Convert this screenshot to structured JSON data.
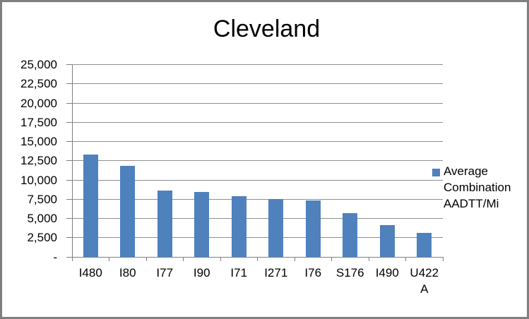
{
  "title": "Cleveland",
  "legend": {
    "label": "Average Combination AADTT/Mi",
    "marker_color": "#4f81bd"
  },
  "colors": {
    "bar": "#4f81bd",
    "gridline": "#8f8f8f",
    "axis": "#7f7f7f",
    "border": "#7f7f7f",
    "text": "#000000",
    "background": "#ffffff"
  },
  "chart_data": {
    "type": "bar",
    "title": "Cleveland",
    "categories": [
      "I480",
      "I80",
      "I77",
      "I90",
      "I71",
      "I271",
      "I76",
      "S176",
      "I490",
      "U422 A"
    ],
    "series": [
      {
        "name": "Average Combination AADTT/Mi",
        "values": [
          13300,
          11800,
          8600,
          8400,
          7850,
          7500,
          7300,
          5650,
          4100,
          3100
        ]
      }
    ],
    "xlabel": "",
    "ylabel": "",
    "ylim": [
      0,
      25000
    ],
    "ytick_step": 2500,
    "ytick_labels": [
      "-",
      "2,500",
      "5,000",
      "7,500",
      "10,000",
      "12,500",
      "15,000",
      "17,500",
      "20,000",
      "22,500",
      "25,000"
    ],
    "grid": true,
    "legend_position": "right",
    "bar_color": "#4f81bd"
  }
}
